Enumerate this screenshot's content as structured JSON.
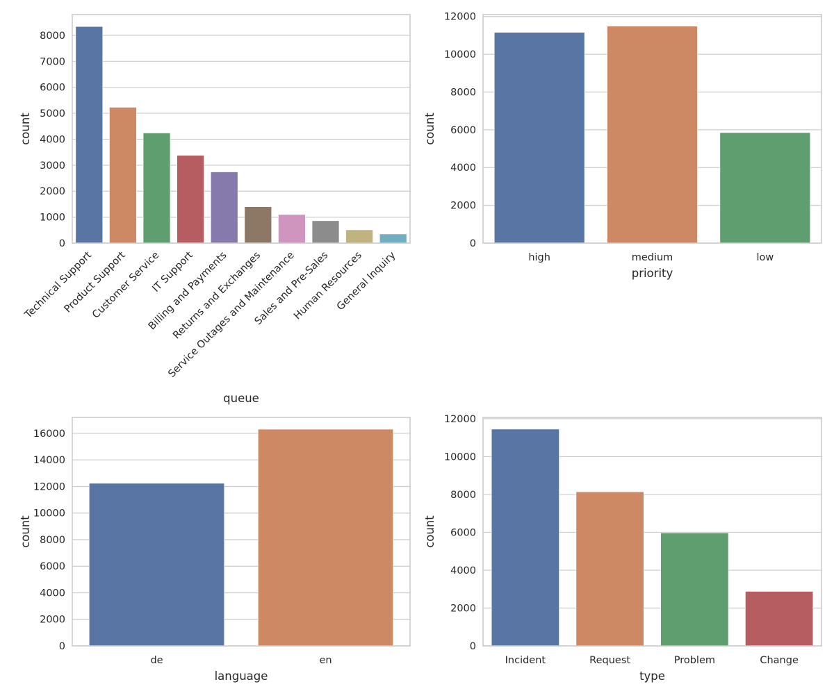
{
  "chart_data": [
    {
      "type": "bar",
      "xlabel": "queue",
      "ylabel": "count",
      "categories": [
        "Technical Support",
        "Product Support",
        "Customer Service",
        "IT Support",
        "Billing and Payments",
        "Returns and Exchanges",
        "Service Outages and Maintenance",
        "Sales and Pre-Sales",
        "Human Resources",
        "General Inquiry"
      ],
      "values": [
        8340,
        5230,
        4240,
        3380,
        2740,
        1400,
        1100,
        860,
        510,
        350
      ],
      "colors": [
        "#5975a4",
        "#cc8963",
        "#5f9e6e",
        "#b55d60",
        "#857aab",
        "#8d7866",
        "#d095bf",
        "#8c8c8c",
        "#c1b37f",
        "#71aec0"
      ],
      "yticks": [
        0,
        1000,
        2000,
        3000,
        4000,
        5000,
        6000,
        7000,
        8000
      ],
      "ylim": [
        0,
        8800
      ],
      "x_tick_rotation": 45,
      "grid": "horizontal"
    },
    {
      "type": "bar",
      "xlabel": "priority",
      "ylabel": "count",
      "categories": [
        "high",
        "medium",
        "low"
      ],
      "values": [
        11160,
        11490,
        5850
      ],
      "colors": [
        "#5975a4",
        "#cc8963",
        "#5f9e6e"
      ],
      "yticks": [
        0,
        2000,
        4000,
        6000,
        8000,
        10000,
        12000
      ],
      "ylim": [
        0,
        12100
      ],
      "grid": "horizontal"
    },
    {
      "type": "bar",
      "xlabel": "language",
      "ylabel": "count",
      "categories": [
        "de",
        "en"
      ],
      "values": [
        12240,
        16310
      ],
      "colors": [
        "#5975a4",
        "#cc8963"
      ],
      "yticks": [
        0,
        2000,
        4000,
        6000,
        8000,
        10000,
        12000,
        14000,
        16000
      ],
      "ylim": [
        0,
        17200
      ],
      "grid": "horizontal"
    },
    {
      "type": "bar",
      "xlabel": "type",
      "ylabel": "count",
      "categories": [
        "Incident",
        "Request",
        "Problem",
        "Change"
      ],
      "values": [
        11450,
        8140,
        5970,
        2880
      ],
      "colors": [
        "#5975a4",
        "#cc8963",
        "#5f9e6e",
        "#b55d60"
      ],
      "yticks": [
        0,
        2000,
        4000,
        6000,
        8000,
        10000,
        12000
      ],
      "ylim": [
        0,
        12070
      ],
      "grid": "horizontal"
    }
  ]
}
